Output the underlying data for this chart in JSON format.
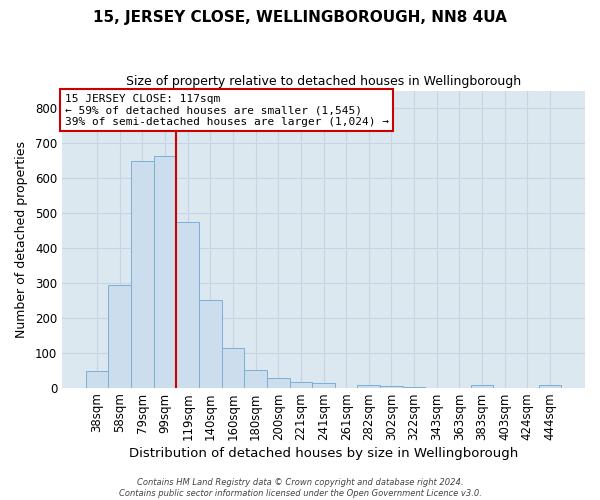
{
  "title": "15, JERSEY CLOSE, WELLINGBOROUGH, NN8 4UA",
  "subtitle": "Size of property relative to detached houses in Wellingborough",
  "xlabel": "Distribution of detached houses by size in Wellingborough",
  "ylabel": "Number of detached properties",
  "bar_labels": [
    "38sqm",
    "58sqm",
    "79sqm",
    "99sqm",
    "119sqm",
    "140sqm",
    "160sqm",
    "180sqm",
    "200sqm",
    "221sqm",
    "241sqm",
    "261sqm",
    "282sqm",
    "302sqm",
    "322sqm",
    "343sqm",
    "363sqm",
    "383sqm",
    "403sqm",
    "424sqm",
    "444sqm"
  ],
  "bar_values": [
    48,
    293,
    648,
    663,
    475,
    250,
    113,
    50,
    27,
    15,
    13,
    0,
    6,
    5,
    3,
    0,
    0,
    6,
    0,
    0,
    7
  ],
  "bar_color": "#ccdded",
  "bar_edge_color": "#7bafd4",
  "vline_color": "#cc0000",
  "annotation_title": "15 JERSEY CLOSE: 117sqm",
  "annotation_line1": "← 59% of detached houses are smaller (1,545)",
  "annotation_line2": "39% of semi-detached houses are larger (1,024) →",
  "annotation_box_color": "#ffffff",
  "annotation_box_edge_color": "#cc0000",
  "ylim": [
    0,
    850
  ],
  "yticks": [
    0,
    100,
    200,
    300,
    400,
    500,
    600,
    700,
    800
  ],
  "grid_color": "#c8d4e4",
  "plot_bg_color": "#dce8f0",
  "fig_bg_color": "#ffffff",
  "footer_line1": "Contains HM Land Registry data © Crown copyright and database right 2024.",
  "footer_line2": "Contains public sector information licensed under the Open Government Licence v3.0."
}
